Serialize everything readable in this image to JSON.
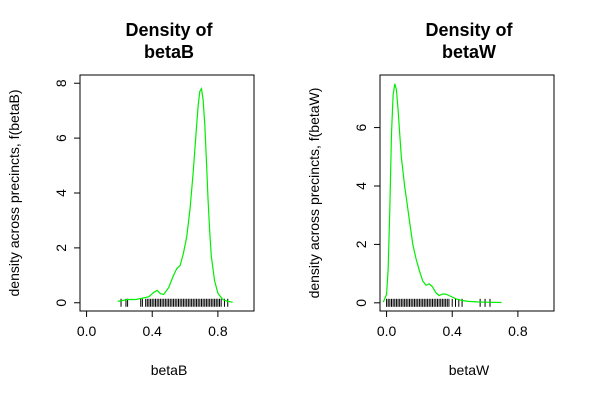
{
  "chart_data": [
    {
      "type": "line",
      "title_line1": "Density of",
      "title_line2": "betaB",
      "xlabel": "betaB",
      "ylabel": "density across precincts, f(betaB)",
      "xlim": [
        -0.04,
        1.02
      ],
      "ylim": [
        -0.3,
        8.3
      ],
      "xticks": [
        0.0,
        0.4,
        0.8
      ],
      "xtick_labels": [
        "0.0",
        "0.4",
        "0.8"
      ],
      "yticks": [
        0,
        2,
        4,
        6,
        8
      ],
      "ytick_labels": [
        "0",
        "2",
        "4",
        "6",
        "8"
      ],
      "grid": false,
      "line_color": "#00ee00",
      "series": [
        {
          "x": [
            0.19,
            0.25,
            0.3,
            0.35,
            0.38,
            0.41,
            0.43,
            0.45,
            0.47,
            0.5,
            0.53,
            0.55,
            0.57,
            0.59,
            0.61,
            0.63,
            0.65,
            0.67,
            0.68,
            0.69,
            0.7,
            0.71,
            0.72,
            0.73,
            0.74,
            0.75,
            0.76,
            0.78,
            0.8,
            0.83,
            0.86,
            0.89
          ],
          "y": [
            0.05,
            0.12,
            0.12,
            0.18,
            0.22,
            0.38,
            0.45,
            0.33,
            0.3,
            0.55,
            1.0,
            1.25,
            1.35,
            1.8,
            2.4,
            3.4,
            4.8,
            6.4,
            7.2,
            7.7,
            7.8,
            7.4,
            6.5,
            5.2,
            3.8,
            2.6,
            1.7,
            0.8,
            0.35,
            0.12,
            0.05,
            0.02
          ]
        }
      ],
      "rug": [
        0.21,
        0.24,
        0.25,
        0.33,
        0.34,
        0.36,
        0.37,
        0.38,
        0.39,
        0.4,
        0.41,
        0.42,
        0.43,
        0.44,
        0.45,
        0.46,
        0.47,
        0.48,
        0.49,
        0.5,
        0.51,
        0.52,
        0.53,
        0.54,
        0.55,
        0.56,
        0.57,
        0.58,
        0.59,
        0.6,
        0.61,
        0.62,
        0.63,
        0.64,
        0.65,
        0.66,
        0.67,
        0.68,
        0.69,
        0.7,
        0.71,
        0.72,
        0.73,
        0.74,
        0.75,
        0.76,
        0.77,
        0.78,
        0.79,
        0.8,
        0.81,
        0.82,
        0.84,
        0.86
      ]
    },
    {
      "type": "line",
      "title_line1": "Density of",
      "title_line2": "betaW",
      "xlabel": "betaW",
      "ylabel": "density across precincts, f(betaW)",
      "xlim": [
        -0.04,
        1.02
      ],
      "ylim": [
        -0.28,
        7.8
      ],
      "xticks": [
        0.0,
        0.4,
        0.8
      ],
      "xtick_labels": [
        "0.0",
        "0.4",
        "0.8"
      ],
      "yticks": [
        0,
        2,
        4,
        6
      ],
      "ytick_labels": [
        "0",
        "2",
        "4",
        "6"
      ],
      "grid": false,
      "line_color": "#00ee00",
      "series": [
        {
          "x": [
            -0.02,
            0.0,
            0.01,
            0.02,
            0.03,
            0.04,
            0.05,
            0.06,
            0.07,
            0.08,
            0.09,
            0.1,
            0.11,
            0.12,
            0.14,
            0.16,
            0.18,
            0.2,
            0.22,
            0.24,
            0.26,
            0.28,
            0.3,
            0.32,
            0.34,
            0.36,
            0.38,
            0.4,
            0.43,
            0.46,
            0.5,
            0.55,
            0.6,
            0.7
          ],
          "y": [
            0.02,
            0.3,
            1.2,
            3.2,
            5.8,
            7.1,
            7.5,
            7.3,
            6.6,
            5.8,
            5.0,
            4.5,
            4.0,
            3.6,
            2.8,
            2.0,
            1.5,
            1.1,
            0.75,
            0.6,
            0.65,
            0.55,
            0.35,
            0.25,
            0.3,
            0.3,
            0.25,
            0.2,
            0.12,
            0.08,
            0.05,
            0.03,
            0.02,
            0.01
          ]
        }
      ],
      "rug": [
        0.0,
        0.01,
        0.02,
        0.03,
        0.04,
        0.05,
        0.06,
        0.07,
        0.08,
        0.09,
        0.1,
        0.11,
        0.12,
        0.13,
        0.14,
        0.15,
        0.16,
        0.17,
        0.18,
        0.19,
        0.2,
        0.21,
        0.22,
        0.23,
        0.24,
        0.25,
        0.26,
        0.27,
        0.28,
        0.29,
        0.3,
        0.31,
        0.32,
        0.33,
        0.34,
        0.35,
        0.36,
        0.37,
        0.38,
        0.4,
        0.42,
        0.44,
        0.46,
        0.57,
        0.6,
        0.63
      ]
    }
  ]
}
